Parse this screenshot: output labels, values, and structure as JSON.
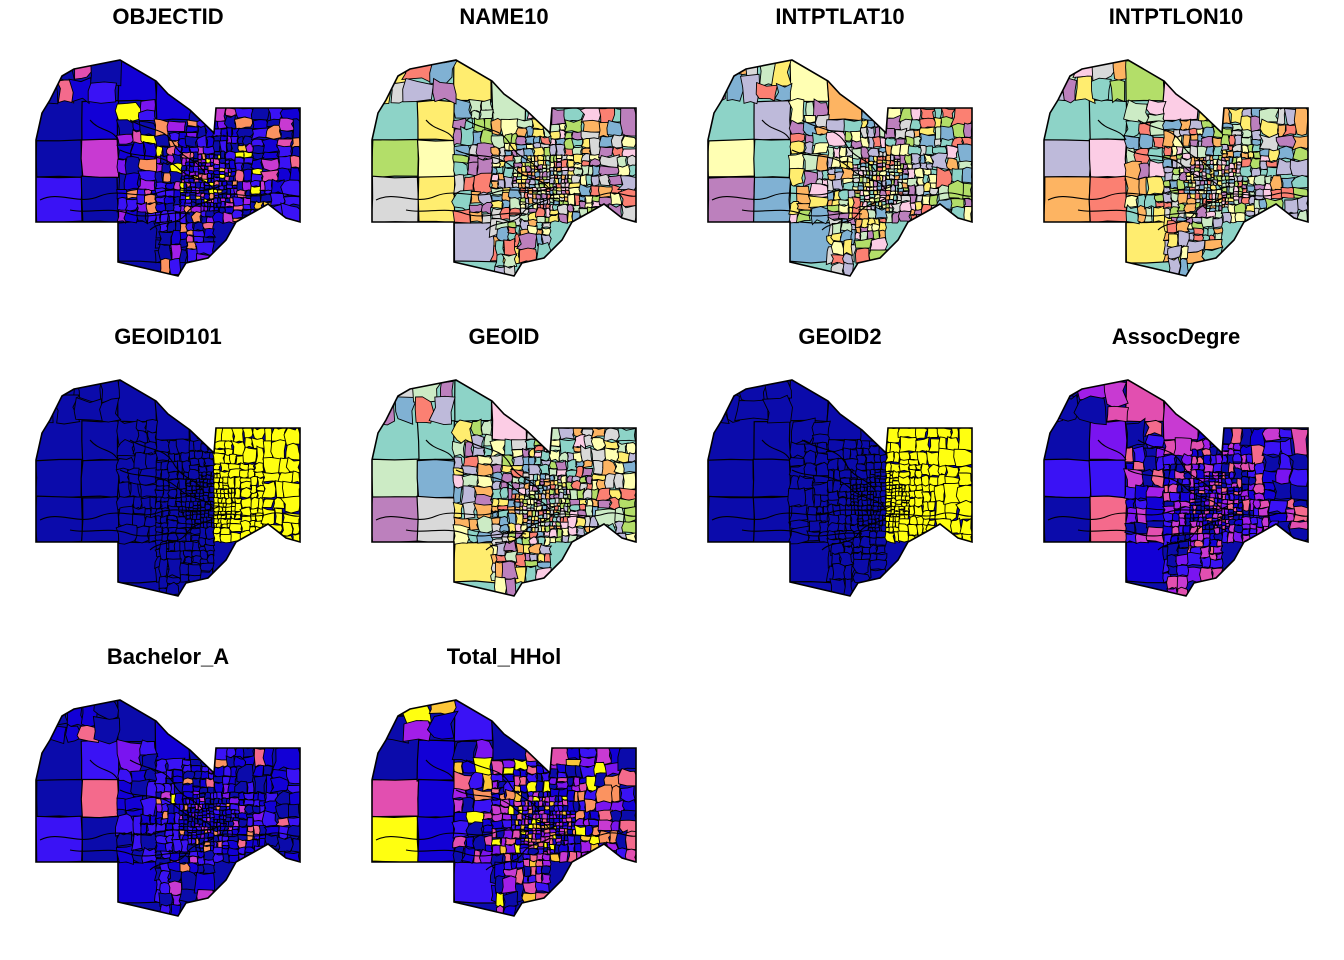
{
  "figure": {
    "panels": [
      {
        "title": "OBJECTID",
        "palette": [
          "#0b0bab",
          "#1200d6",
          "#3a12f5",
          "#7a14f0",
          "#a21ee8",
          "#c83ad2",
          "#e24fb0",
          "#f46a8c",
          "#fb9360",
          "#fcc638",
          "#ffff10"
        ],
        "dark_weight": 0.55
      },
      {
        "title": "NAME10",
        "palette": [
          "#8dd3c7",
          "#ffffb3",
          "#bebada",
          "#fb8072",
          "#80b1d3",
          "#fdb462",
          "#b3de69",
          "#fccde5",
          "#d9d9d9",
          "#bc80bd",
          "#ccebc5",
          "#ffed6f"
        ],
        "dark_weight": 0
      },
      {
        "title": "INTPTLAT10",
        "palette": [
          "#8dd3c7",
          "#ffffb3",
          "#bebada",
          "#fb8072",
          "#80b1d3",
          "#fdb462",
          "#b3de69",
          "#fccde5",
          "#d9d9d9",
          "#bc80bd",
          "#ccebc5",
          "#ffed6f"
        ],
        "dark_weight": 0
      },
      {
        "title": "INTPTLON10",
        "palette": [
          "#8dd3c7",
          "#ffffb3",
          "#bebada",
          "#fb8072",
          "#80b1d3",
          "#fdb462",
          "#b3de69",
          "#fccde5",
          "#d9d9d9",
          "#bc80bd",
          "#ccebc5",
          "#ffed6f"
        ],
        "dark_weight": 0
      },
      {
        "title": "GEOID101",
        "palette": [
          "#0b0bab",
          "#ffff10"
        ],
        "split": "east"
      },
      {
        "title": "GEOID",
        "palette": [
          "#8dd3c7",
          "#ffffb3",
          "#bebada",
          "#fb8072",
          "#80b1d3",
          "#fdb462",
          "#b3de69",
          "#fccde5",
          "#d9d9d9",
          "#bc80bd",
          "#ccebc5",
          "#ffed6f"
        ],
        "dark_weight": 0
      },
      {
        "title": "GEOID2",
        "palette": [
          "#0b0bab",
          "#ffff10"
        ],
        "split": "east"
      },
      {
        "title": "AssocDegre",
        "palette": [
          "#0b0bab",
          "#1200d6",
          "#3a12f5",
          "#7a14f0",
          "#a21ee8",
          "#c83ad2",
          "#e24fb0",
          "#f46a8c"
        ],
        "dark_weight": 0.35
      },
      {
        "title": "Bachelor_A",
        "palette": [
          "#0b0bab",
          "#1200d6",
          "#3a12f5",
          "#7a14f0",
          "#c83ad2",
          "#f46a8c",
          "#fb9360",
          "#ffff10"
        ],
        "dark_weight": 0.8
      },
      {
        "title": "Total_HHol",
        "palette": [
          "#0b0bab",
          "#1200d6",
          "#3a12f5",
          "#7a14f0",
          "#a21ee8",
          "#c83ad2",
          "#e24fb0",
          "#f46a8c",
          "#fb9360",
          "#fcc638",
          "#ffff10"
        ],
        "dark_weight": 0.3
      }
    ]
  }
}
